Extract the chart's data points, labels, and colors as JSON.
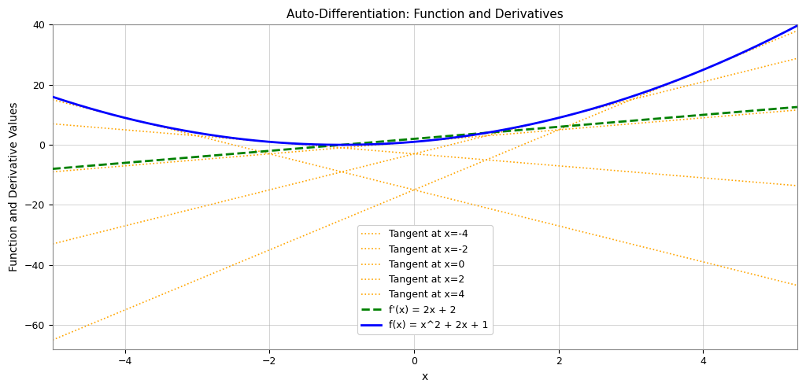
{
  "title": "Auto-Differentiation: Function and Derivatives",
  "xlabel": "x",
  "ylabel": "Function and Derivative Values",
  "xlim": [
    -5.0,
    5.3
  ],
  "ylim": [
    -68,
    40
  ],
  "x_start": -5.0,
  "x_end": 5.3,
  "tangent_points": [
    -4,
    -2,
    0,
    2,
    4
  ],
  "func_color": "blue",
  "deriv_color": "green",
  "tangent_color": "orange",
  "func_label": "f(x) = x^2 + 2x + 1",
  "deriv_label": "f'(x) = 2x + 2",
  "tangent_label_prefix": "Tangent at x=",
  "background_color": "#ffffff",
  "axes_background": "#ffffff",
  "grid_color": "#aaaaaa",
  "title_fontsize": 11,
  "label_fontsize": 10,
  "tick_fontsize": 9,
  "legend_fontsize": 9,
  "func_linewidth": 2.0,
  "deriv_linewidth": 2.0,
  "tangent_linewidth": 1.2
}
